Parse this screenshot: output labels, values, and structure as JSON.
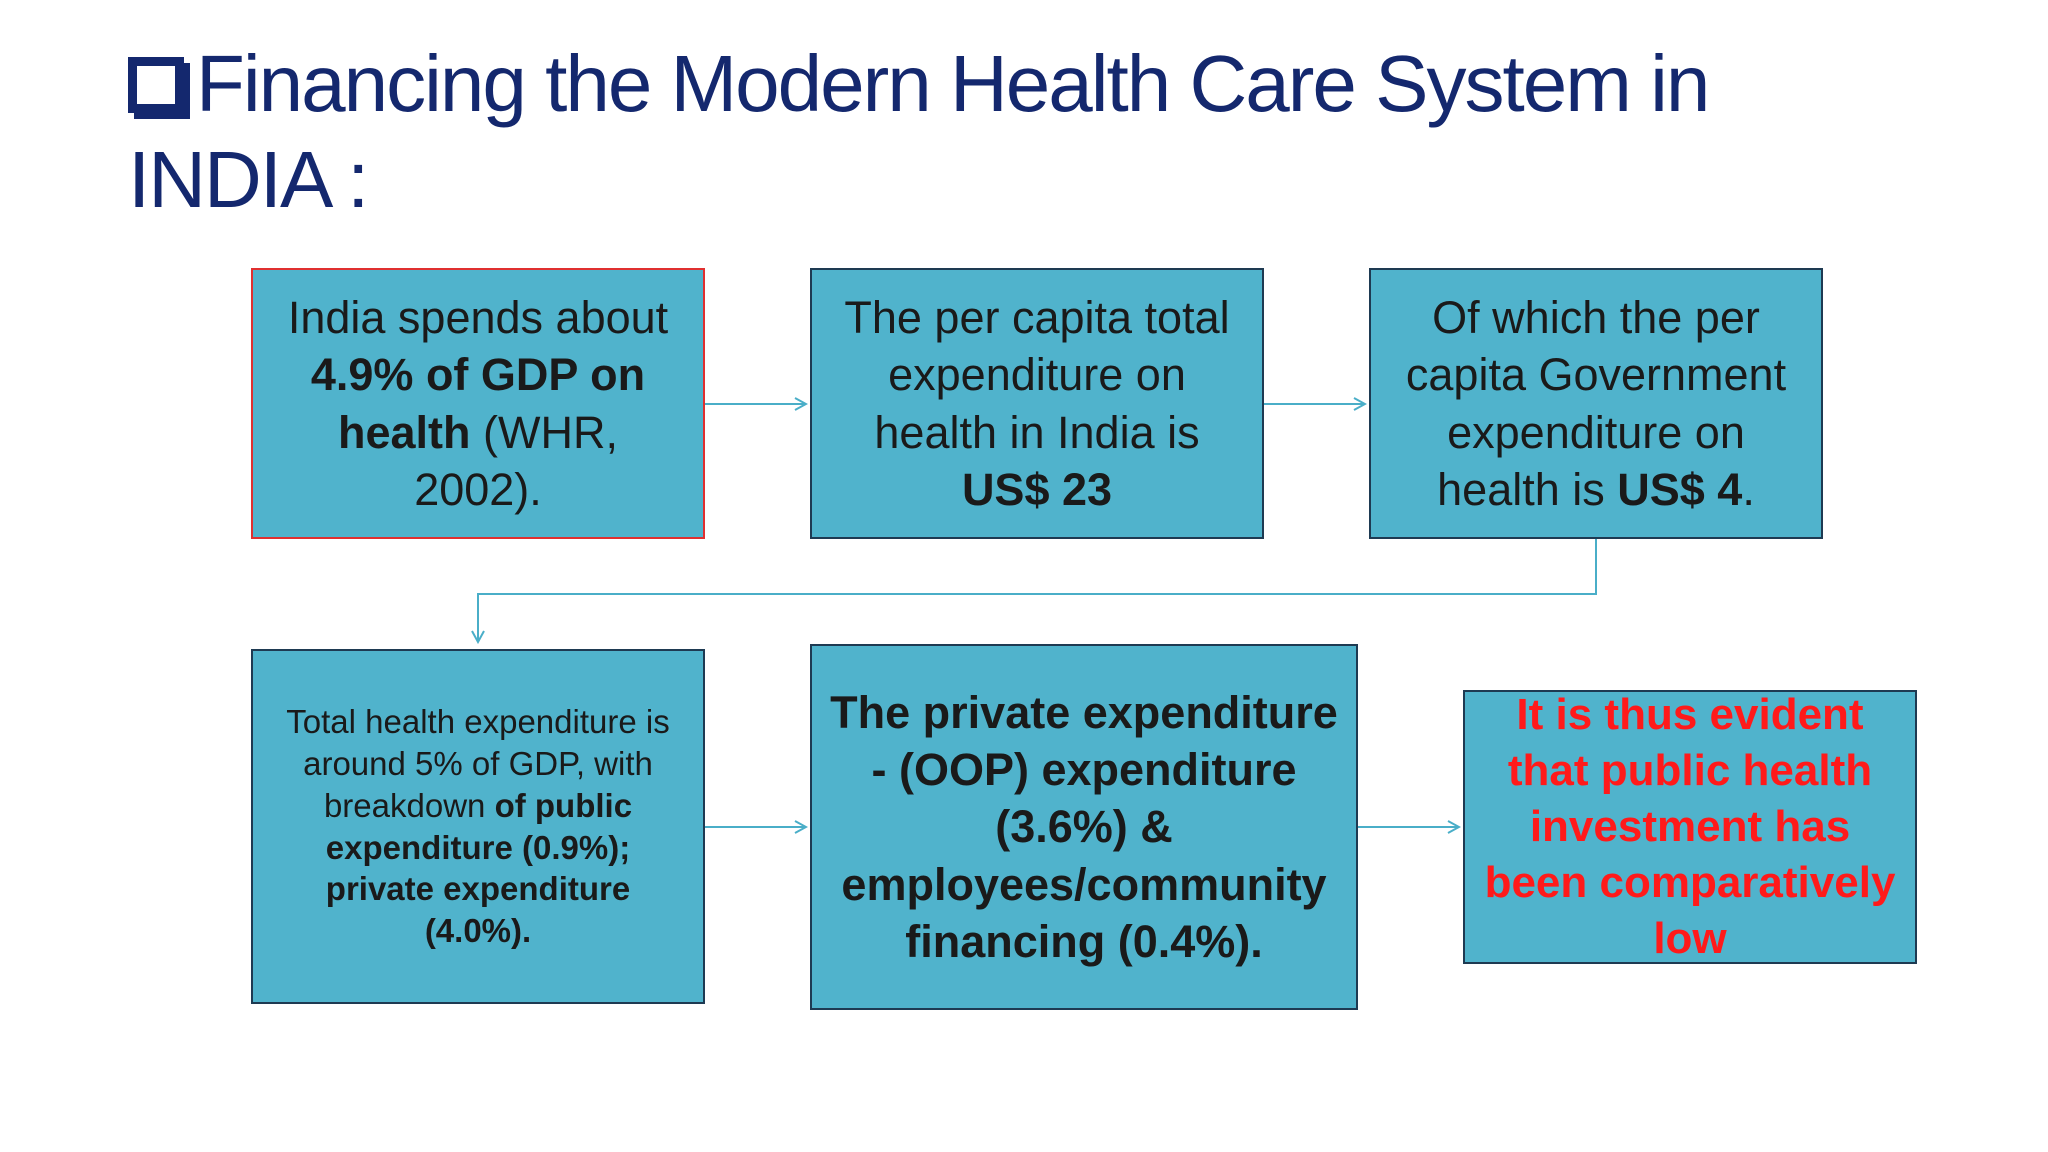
{
  "title": {
    "line1": "Financing the Modern Health Care System in",
    "line2": "INDIA :"
  },
  "nodes": [
    {
      "runs": [
        {
          "text": "India spends about ",
          "bold": false
        },
        {
          "text": "4.9% of GDP on health",
          "bold": true
        },
        {
          "text": " (WHR, 2002).",
          "bold": false
        }
      ],
      "border": "#e03030",
      "text_color": "#1a1a1a"
    },
    {
      "runs": [
        {
          "text": "The per capita total expenditure on health in India is ",
          "bold": false
        },
        {
          "text": "US$ 23",
          "bold": true
        }
      ],
      "border": "#1e3a52",
      "text_color": "#1a1a1a"
    },
    {
      "runs": [
        {
          "text": "Of which the per capita Government expenditure on health is ",
          "bold": false
        },
        {
          "text": "US$ 4",
          "bold": true
        },
        {
          "text": ".",
          "bold": false
        }
      ],
      "border": "#1e3a52",
      "text_color": "#1a1a1a"
    },
    {
      "runs": [
        {
          "text": "Total health expenditure is around 5% of GDP, with breakdown ",
          "bold": false
        },
        {
          "text": "of public expenditure (0.9%); private expenditure (4.0%).",
          "bold": true
        }
      ],
      "border": "#1e3a52",
      "text_color": "#1a1a1a"
    },
    {
      "runs": [
        {
          "text": "The private expenditure - (OOP) expenditure (3.6%) & employees/community financing (0.4%).",
          "bold": true
        }
      ],
      "border": "#1e3a52",
      "text_color": "#1a1a1a"
    },
    {
      "runs": [
        {
          "text": "It is thus evident that public health investment has been comparatively low",
          "bold": true
        }
      ],
      "border": "#1e3a52",
      "text_color": "#ff1a1a"
    }
  ]
}
